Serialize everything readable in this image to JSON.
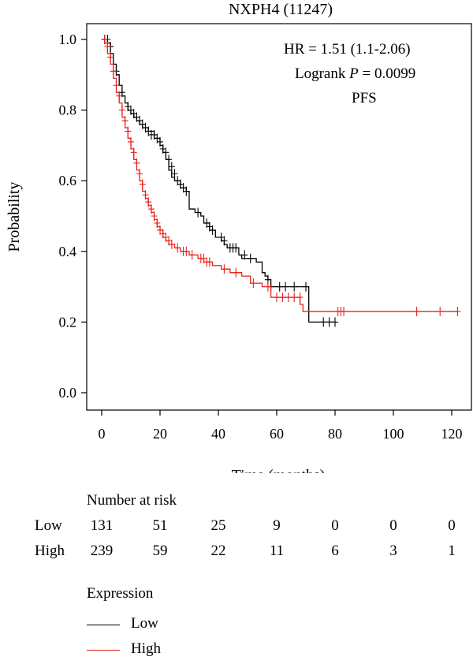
{
  "chart_data": {
    "type": "line",
    "title": "NXPH4 (11247)",
    "xlabel": "Time (months)",
    "ylabel": "Probability",
    "xlim": [
      0,
      125
    ],
    "ylim": [
      0,
      1.05
    ],
    "xticks": [
      0,
      20,
      40,
      60,
      80,
      100,
      120
    ],
    "yticks": [
      0.0,
      0.2,
      0.4,
      0.6,
      0.8,
      1.0
    ],
    "annotations": {
      "hr": "HR = 1.51 (1.1-2.06)",
      "logrank_prefix": "Logrank ",
      "logrank_p": "P",
      "logrank_suffix": " = 0.0099",
      "endpoint": "PFS"
    },
    "series": [
      {
        "name": "Low",
        "color": "#000000",
        "steps": [
          [
            0,
            1.0
          ],
          [
            1,
            1.0
          ],
          [
            2,
            0.99
          ],
          [
            3,
            0.96
          ],
          [
            4,
            0.93
          ],
          [
            5,
            0.9
          ],
          [
            6,
            0.87
          ],
          [
            7,
            0.84
          ],
          [
            8,
            0.82
          ],
          [
            9,
            0.8
          ],
          [
            10,
            0.79
          ],
          [
            11,
            0.78
          ],
          [
            12,
            0.77
          ],
          [
            13,
            0.76
          ],
          [
            14,
            0.75
          ],
          [
            16,
            0.74
          ],
          [
            18,
            0.72
          ],
          [
            20,
            0.7
          ],
          [
            21,
            0.68
          ],
          [
            22,
            0.66
          ],
          [
            23,
            0.63
          ],
          [
            24,
            0.61
          ],
          [
            25,
            0.6
          ],
          [
            27,
            0.58
          ],
          [
            29,
            0.57
          ],
          [
            30,
            0.52
          ],
          [
            32,
            0.51
          ],
          [
            34,
            0.5
          ],
          [
            35,
            0.48
          ],
          [
            37,
            0.46
          ],
          [
            39,
            0.44
          ],
          [
            41,
            0.43
          ],
          [
            42,
            0.42
          ],
          [
            43,
            0.41
          ],
          [
            47,
            0.39
          ],
          [
            48,
            0.38
          ],
          [
            53,
            0.37
          ],
          [
            55,
            0.34
          ],
          [
            56,
            0.33
          ],
          [
            57,
            0.32
          ],
          [
            58,
            0.3
          ],
          [
            65,
            0.3
          ],
          [
            71,
            0.2
          ],
          [
            80,
            0.2
          ]
        ],
        "censored": [
          [
            1,
            1.0
          ],
          [
            2,
            1.0
          ],
          [
            3,
            0.98
          ],
          [
            5,
            0.91
          ],
          [
            7,
            0.85
          ],
          [
            9,
            0.81
          ],
          [
            10,
            0.8
          ],
          [
            11,
            0.79
          ],
          [
            12,
            0.78
          ],
          [
            13,
            0.77
          ],
          [
            14,
            0.76
          ],
          [
            15,
            0.75
          ],
          [
            16,
            0.74
          ],
          [
            17,
            0.73
          ],
          [
            18,
            0.73
          ],
          [
            19,
            0.72
          ],
          [
            20,
            0.71
          ],
          [
            21,
            0.69
          ],
          [
            22,
            0.68
          ],
          [
            23,
            0.66
          ],
          [
            24,
            0.64
          ],
          [
            25,
            0.62
          ],
          [
            26,
            0.6
          ],
          [
            27,
            0.59
          ],
          [
            28,
            0.58
          ],
          [
            29,
            0.57
          ],
          [
            33,
            0.51
          ],
          [
            36,
            0.48
          ],
          [
            37,
            0.47
          ],
          [
            38,
            0.46
          ],
          [
            41,
            0.44
          ],
          [
            42,
            0.43
          ],
          [
            44,
            0.41
          ],
          [
            45,
            0.41
          ],
          [
            46,
            0.41
          ],
          [
            49,
            0.39
          ],
          [
            51,
            0.38
          ],
          [
            57,
            0.32
          ],
          [
            58,
            0.3
          ],
          [
            61,
            0.3
          ],
          [
            63,
            0.3
          ],
          [
            66,
            0.3
          ],
          [
            70,
            0.3
          ],
          [
            76,
            0.2
          ],
          [
            78,
            0.2
          ],
          [
            80,
            0.2
          ]
        ]
      },
      {
        "name": "High",
        "color": "#e8221c",
        "steps": [
          [
            0,
            1.0
          ],
          [
            1,
            0.99
          ],
          [
            2,
            0.96
          ],
          [
            3,
            0.93
          ],
          [
            4,
            0.89
          ],
          [
            5,
            0.85
          ],
          [
            6,
            0.82
          ],
          [
            7,
            0.78
          ],
          [
            8,
            0.75
          ],
          [
            9,
            0.72
          ],
          [
            10,
            0.69
          ],
          [
            11,
            0.66
          ],
          [
            12,
            0.63
          ],
          [
            13,
            0.6
          ],
          [
            14,
            0.57
          ],
          [
            15,
            0.55
          ],
          [
            16,
            0.53
          ],
          [
            17,
            0.51
          ],
          [
            18,
            0.49
          ],
          [
            19,
            0.47
          ],
          [
            20,
            0.46
          ],
          [
            21,
            0.44
          ],
          [
            22,
            0.43
          ],
          [
            23,
            0.42
          ],
          [
            25,
            0.41
          ],
          [
            27,
            0.4
          ],
          [
            30,
            0.39
          ],
          [
            33,
            0.38
          ],
          [
            35,
            0.37
          ],
          [
            38,
            0.36
          ],
          [
            41,
            0.35
          ],
          [
            44,
            0.34
          ],
          [
            48,
            0.33
          ],
          [
            51,
            0.31
          ],
          [
            55,
            0.3
          ],
          [
            58,
            0.27
          ],
          [
            68,
            0.25
          ],
          [
            69,
            0.23
          ],
          [
            122,
            0.23
          ]
        ],
        "censored": [
          [
            1,
            1.0
          ],
          [
            2,
            0.98
          ],
          [
            3,
            0.95
          ],
          [
            4,
            0.91
          ],
          [
            5,
            0.87
          ],
          [
            6,
            0.84
          ],
          [
            7,
            0.8
          ],
          [
            8,
            0.77
          ],
          [
            9,
            0.74
          ],
          [
            10,
            0.71
          ],
          [
            11,
            0.68
          ],
          [
            12,
            0.65
          ],
          [
            13,
            0.62
          ],
          [
            14,
            0.59
          ],
          [
            15,
            0.56
          ],
          [
            16,
            0.54
          ],
          [
            17,
            0.52
          ],
          [
            18,
            0.5
          ],
          [
            19,
            0.48
          ],
          [
            20,
            0.46
          ],
          [
            21,
            0.45
          ],
          [
            22,
            0.44
          ],
          [
            23,
            0.43
          ],
          [
            24,
            0.42
          ],
          [
            26,
            0.41
          ],
          [
            28,
            0.4
          ],
          [
            29,
            0.4
          ],
          [
            31,
            0.39
          ],
          [
            34,
            0.38
          ],
          [
            35,
            0.38
          ],
          [
            36,
            0.37
          ],
          [
            37,
            0.37
          ],
          [
            42,
            0.35
          ],
          [
            46,
            0.34
          ],
          [
            52,
            0.31
          ],
          [
            57,
            0.3
          ],
          [
            60,
            0.27
          ],
          [
            62,
            0.27
          ],
          [
            64,
            0.27
          ],
          [
            66,
            0.27
          ],
          [
            68,
            0.27
          ],
          [
            81,
            0.23
          ],
          [
            82,
            0.23
          ],
          [
            83,
            0.23
          ],
          [
            108,
            0.23
          ],
          [
            116,
            0.23
          ],
          [
            122,
            0.23
          ]
        ]
      }
    ],
    "risk_table": {
      "title": "Number at risk",
      "times": [
        0,
        20,
        40,
        60,
        80,
        100,
        120
      ],
      "rows": [
        {
          "label": "Low",
          "values": [
            "131",
            "51",
            "25",
            "9",
            "0",
            "0",
            "0"
          ]
        },
        {
          "label": "High",
          "values": [
            "239",
            "59",
            "22",
            "11",
            "6",
            "3",
            "1"
          ]
        }
      ]
    },
    "legend": {
      "title": "Expression",
      "items": [
        {
          "label": "Low",
          "color": "#000000"
        },
        {
          "label": "High",
          "color": "#e8221c"
        }
      ]
    }
  }
}
